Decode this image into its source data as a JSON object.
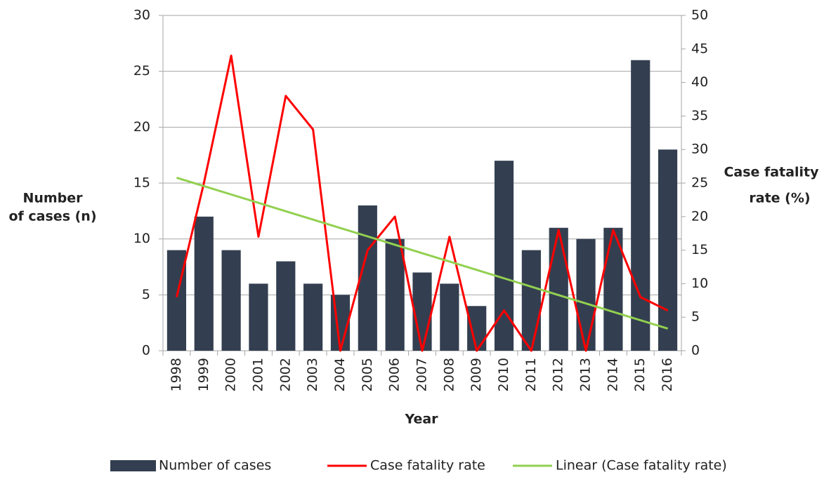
{
  "chart_data": {
    "type": "combo",
    "x_label": "Year",
    "y_label": [
      "Number",
      "of cases (n)"
    ],
    "y2_label": [
      "Case fatality",
      "rate (%)"
    ],
    "categories": [
      "1998",
      "1999",
      "2000",
      "2001",
      "2002",
      "2003",
      "2004",
      "2005",
      "2006",
      "2007",
      "2008",
      "2009",
      "2010",
      "2011",
      "2012",
      "2013",
      "2014",
      "2015",
      "2016"
    ],
    "series": [
      {
        "name": "Number of cases",
        "type": "bar",
        "color": "#333f50",
        "axis": "y",
        "values": [
          9,
          12,
          9,
          6,
          8,
          6,
          5,
          13,
          10,
          7,
          6,
          4,
          17,
          9,
          11,
          10,
          11,
          26,
          18
        ]
      },
      {
        "name": "Case fatality rate",
        "type": "line",
        "color": "#ff0000",
        "axis": "y2",
        "values": [
          8,
          25,
          44,
          17,
          38,
          33,
          0,
          15,
          20,
          0,
          17,
          0,
          6,
          0,
          18,
          0,
          18,
          8,
          6
        ]
      },
      {
        "name": "Linear (Case fatality rate)",
        "type": "line",
        "color": "#92d050",
        "axis": "y2",
        "values": [
          25.8,
          24.55,
          23.3,
          22.05,
          20.8,
          19.55,
          18.3,
          17.05,
          15.8,
          14.55,
          13.3,
          12.05,
          10.8,
          9.55,
          8.3,
          7.05,
          5.8,
          4.55,
          3.3
        ]
      }
    ],
    "ylim": [
      0,
      30
    ],
    "yticks": [
      0,
      5,
      10,
      15,
      20,
      25,
      30
    ],
    "y2lim": [
      0,
      50
    ],
    "y2ticks": [
      0,
      5,
      10,
      15,
      20,
      25,
      30,
      35,
      40,
      45,
      50
    ],
    "grid": true,
    "legend": "bottom"
  }
}
